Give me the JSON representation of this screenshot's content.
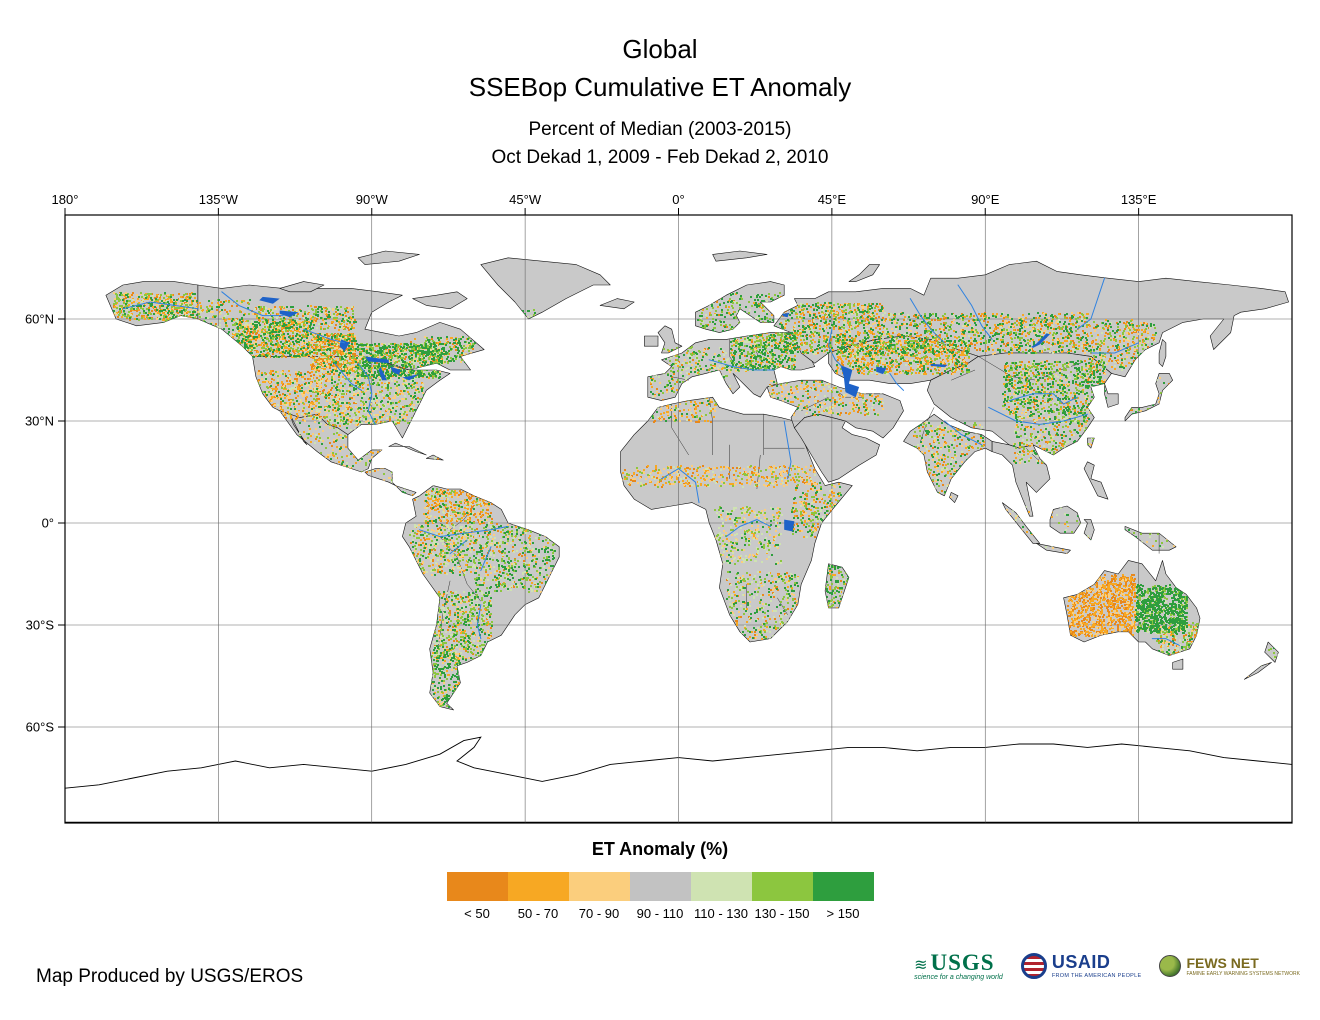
{
  "title": {
    "line1": "Global",
    "line2": "SSEBop Cumulative ET Anomaly",
    "subtitle1": "Percent of Median (2003-2015)",
    "subtitle2": "Oct Dekad 1, 2009 - Feb Dekad 2, 2010"
  },
  "map": {
    "lon_ticks": [
      {
        "lon": -180,
        "label": "180°"
      },
      {
        "lon": -135,
        "label": "135°W"
      },
      {
        "lon": -90,
        "label": "90°W"
      },
      {
        "lon": -45,
        "label": "45°W"
      },
      {
        "lon": 0,
        "label": "0°"
      },
      {
        "lon": 45,
        "label": "45°E"
      },
      {
        "lon": 90,
        "label": "90°E"
      },
      {
        "lon": 135,
        "label": "135°E"
      }
    ],
    "lat_ticks": [
      {
        "lat": 60,
        "label": "60°N"
      },
      {
        "lat": 30,
        "label": "30°N"
      },
      {
        "lat": 0,
        "label": "0°"
      },
      {
        "lat": -30,
        "label": "30°S"
      },
      {
        "lat": -60,
        "label": "60°S"
      }
    ],
    "land_color": "#c9c9c9",
    "water_color": "#1e62c8",
    "river_color": "#2f82e0"
  },
  "legend": {
    "title": "ET Anomaly (%)",
    "classes": [
      {
        "label": "< 50",
        "color": "#E8881B"
      },
      {
        "label": "50 - 70",
        "color": "#F7A823"
      },
      {
        "label": "70 - 90",
        "color": "#FBCE7D"
      },
      {
        "label": "90 - 110",
        "color": "#C2C2C2"
      },
      {
        "label": "110 - 130",
        "color": "#CFE3B2"
      },
      {
        "label": "130 - 150",
        "color": "#8CC63F"
      },
      {
        "label": "> 150",
        "color": "#2E9E3E"
      }
    ]
  },
  "footer": {
    "credit": "Map Produced by USGS/EROS"
  },
  "logos": {
    "usgs": {
      "name": "USGS",
      "tagline": "science for a changing world"
    },
    "usaid": {
      "name": "USAID",
      "tagline": "FROM THE AMERICAN PEOPLE"
    },
    "fewsnet": {
      "name": "FEWS NET",
      "tagline": "FAMINE EARLY WARNING SYSTEMS NETWORK"
    }
  }
}
